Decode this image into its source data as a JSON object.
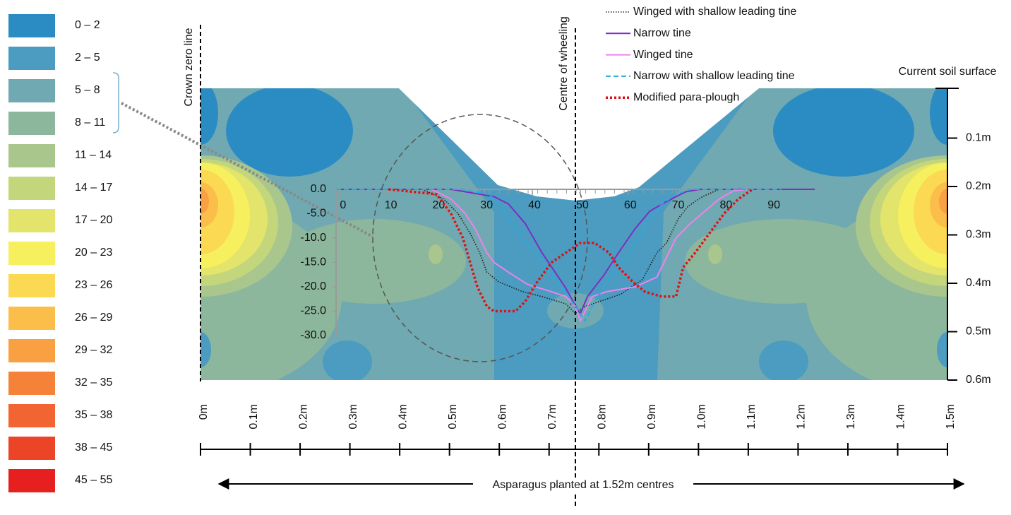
{
  "chart_data": [
    {
      "type": "contour",
      "levels": [
        "0 – 2",
        "2 – 5",
        "5 – 8",
        "8 – 11",
        "11 – 14",
        "14 – 17",
        "17 – 20",
        "20 – 23",
        "23 – 26",
        "26 – 29",
        "29 – 32",
        "32 – 35",
        "35 – 38",
        "38 – 45",
        "45 – 55"
      ],
      "colors": [
        "#2b8cc4",
        "#4b9cc0",
        "#70a9b1",
        "#8db79c",
        "#a9c78c",
        "#c4d67c",
        "#e2e46c",
        "#f6ef5e",
        "#fbd952",
        "#fbbe4a",
        "#f9a042",
        "#f6823a",
        "#f26431",
        "#ec4427",
        "#e5201f"
      ],
      "xlim": [
        0,
        1.5
      ],
      "xticks": [
        {
          "value": 0,
          "label": "0m"
        },
        {
          "value": 0.1,
          "label": "0.1m"
        },
        {
          "value": 0.2,
          "label": "0.2m"
        },
        {
          "value": 0.3,
          "label": "0.3m"
        },
        {
          "value": 0.4,
          "label": "0.4m"
        },
        {
          "value": 0.5,
          "label": "0.5m"
        },
        {
          "value": 0.6,
          "label": "0.6m"
        },
        {
          "value": 0.7,
          "label": "0.7m"
        },
        {
          "value": 0.8,
          "label": "0.8m"
        },
        {
          "value": 0.9,
          "label": "0.9m"
        },
        {
          "value": 1.0,
          "label": "1.0m"
        },
        {
          "value": 1.1,
          "label": "1.1m"
        },
        {
          "value": 1.2,
          "label": "1.2m"
        },
        {
          "value": 1.3,
          "label": "1.3m"
        },
        {
          "value": 1.4,
          "label": "1.4m"
        },
        {
          "value": 1.5,
          "label": "1.5m"
        }
      ],
      "ylim": [
        0,
        0.6
      ],
      "yticks": [
        {
          "value": 0.1,
          "label": "0.1m"
        },
        {
          "value": 0.2,
          "label": "0.2m"
        },
        {
          "value": 0.3,
          "label": "0.3m"
        },
        {
          "value": 0.4,
          "label": "0.4m"
        },
        {
          "value": 0.5,
          "label": "0.5m"
        },
        {
          "value": 0.6,
          "label": "0.6m"
        }
      ],
      "annotations": [
        "Crown zero line",
        "Centre of wheeling",
        "Current soil surface",
        "Asparagus planted at 1.52m centres"
      ]
    },
    {
      "type": "line",
      "xlim": [
        -1,
        100
      ],
      "ylim": [
        -30,
        0
      ],
      "xticks": [
        0,
        10,
        20,
        30,
        40,
        50,
        60,
        70,
        80,
        90
      ],
      "yticks": [
        {
          "value": 0,
          "label": "0.0"
        },
        {
          "value": -5,
          "label": "-5.0"
        },
        {
          "value": -10,
          "label": "-10.0"
        },
        {
          "value": -15,
          "label": "-15.0"
        },
        {
          "value": -20,
          "label": "-20.0"
        },
        {
          "value": -25,
          "label": "-25.0"
        },
        {
          "value": -30,
          "label": "-30.0"
        }
      ],
      "series": [
        {
          "name": "Winged with shallow leading tine",
          "color": "#222222",
          "style": "dotted",
          "x": [
            17,
            21.5,
            24.5,
            27,
            29,
            30.5,
            33,
            38,
            42,
            47,
            49,
            51,
            54,
            58.5,
            63,
            66,
            68,
            70.5,
            72.5,
            75.5,
            79
          ],
          "values": [
            0,
            -2,
            -5,
            -9,
            -13,
            -17,
            -19,
            -21,
            -22,
            -23.5,
            -25.5,
            -24,
            -23,
            -21.5,
            -18.5,
            -13,
            -11,
            -6,
            -3.5,
            -1.5,
            0
          ]
        },
        {
          "name": "Narrow tine",
          "color": "#7b2fc4",
          "style": "solid",
          "x": [
            0,
            23,
            32,
            35,
            38.5,
            42,
            46.8,
            49.4,
            50,
            51.5,
            55,
            58,
            61.5,
            64.5,
            68,
            72,
            75,
            99
          ],
          "values": [
            0,
            0,
            -1.5,
            -3,
            -7,
            -13,
            -20,
            -24.5,
            -25.5,
            -22,
            -17.5,
            -13,
            -8,
            -4.5,
            -2.5,
            -0.5,
            0,
            0
          ]
        },
        {
          "name": "Winged tine",
          "color": "#ee82ee",
          "style": "solid",
          "x": [
            19,
            23,
            26,
            28,
            30.5,
            32,
            35,
            39,
            44,
            47,
            49,
            50,
            51,
            52.5,
            55.5,
            61.5,
            66,
            68,
            70,
            73,
            76,
            79,
            82,
            85
          ],
          "values": [
            0,
            -2,
            -5,
            -8,
            -13,
            -15,
            -17,
            -19.5,
            -21,
            -22,
            -24,
            -27,
            -25,
            -22,
            -21,
            -20,
            -18,
            -14,
            -10,
            -7,
            -4.5,
            -2,
            -0.3,
            0
          ]
        },
        {
          "name": "Narrow with shallow leading tine",
          "color": "#29abe2",
          "style": "dashed",
          "x": [
            -1,
            25,
            31,
            35,
            38,
            42,
            46,
            49,
            51,
            53,
            57,
            61,
            64,
            67,
            70,
            73,
            92
          ],
          "values": [
            0,
            0,
            -1,
            -6,
            -10,
            -15,
            -20,
            -24,
            -27,
            -23,
            -17,
            -12,
            -7,
            -3,
            -1,
            0,
            0
          ]
        },
        {
          "name": "Modified para-plough",
          "color": "#e01010",
          "style": "bolddotted",
          "x": [
            10,
            20,
            23,
            25.5,
            27,
            28.5,
            30.5,
            32,
            36.5,
            38.5,
            41,
            44,
            47,
            50,
            53,
            56,
            58,
            61,
            63.5,
            67,
            70,
            71.5,
            74,
            77,
            80,
            83,
            86
          ],
          "values": [
            0,
            -1,
            -5,
            -10,
            -15,
            -20,
            -24,
            -25,
            -25,
            -23,
            -19,
            -15,
            -13,
            -11,
            -11,
            -13,
            -16,
            -19,
            -21,
            -22,
            -22,
            -16,
            -13,
            -9,
            -5,
            -2,
            0
          ]
        }
      ]
    }
  ]
}
